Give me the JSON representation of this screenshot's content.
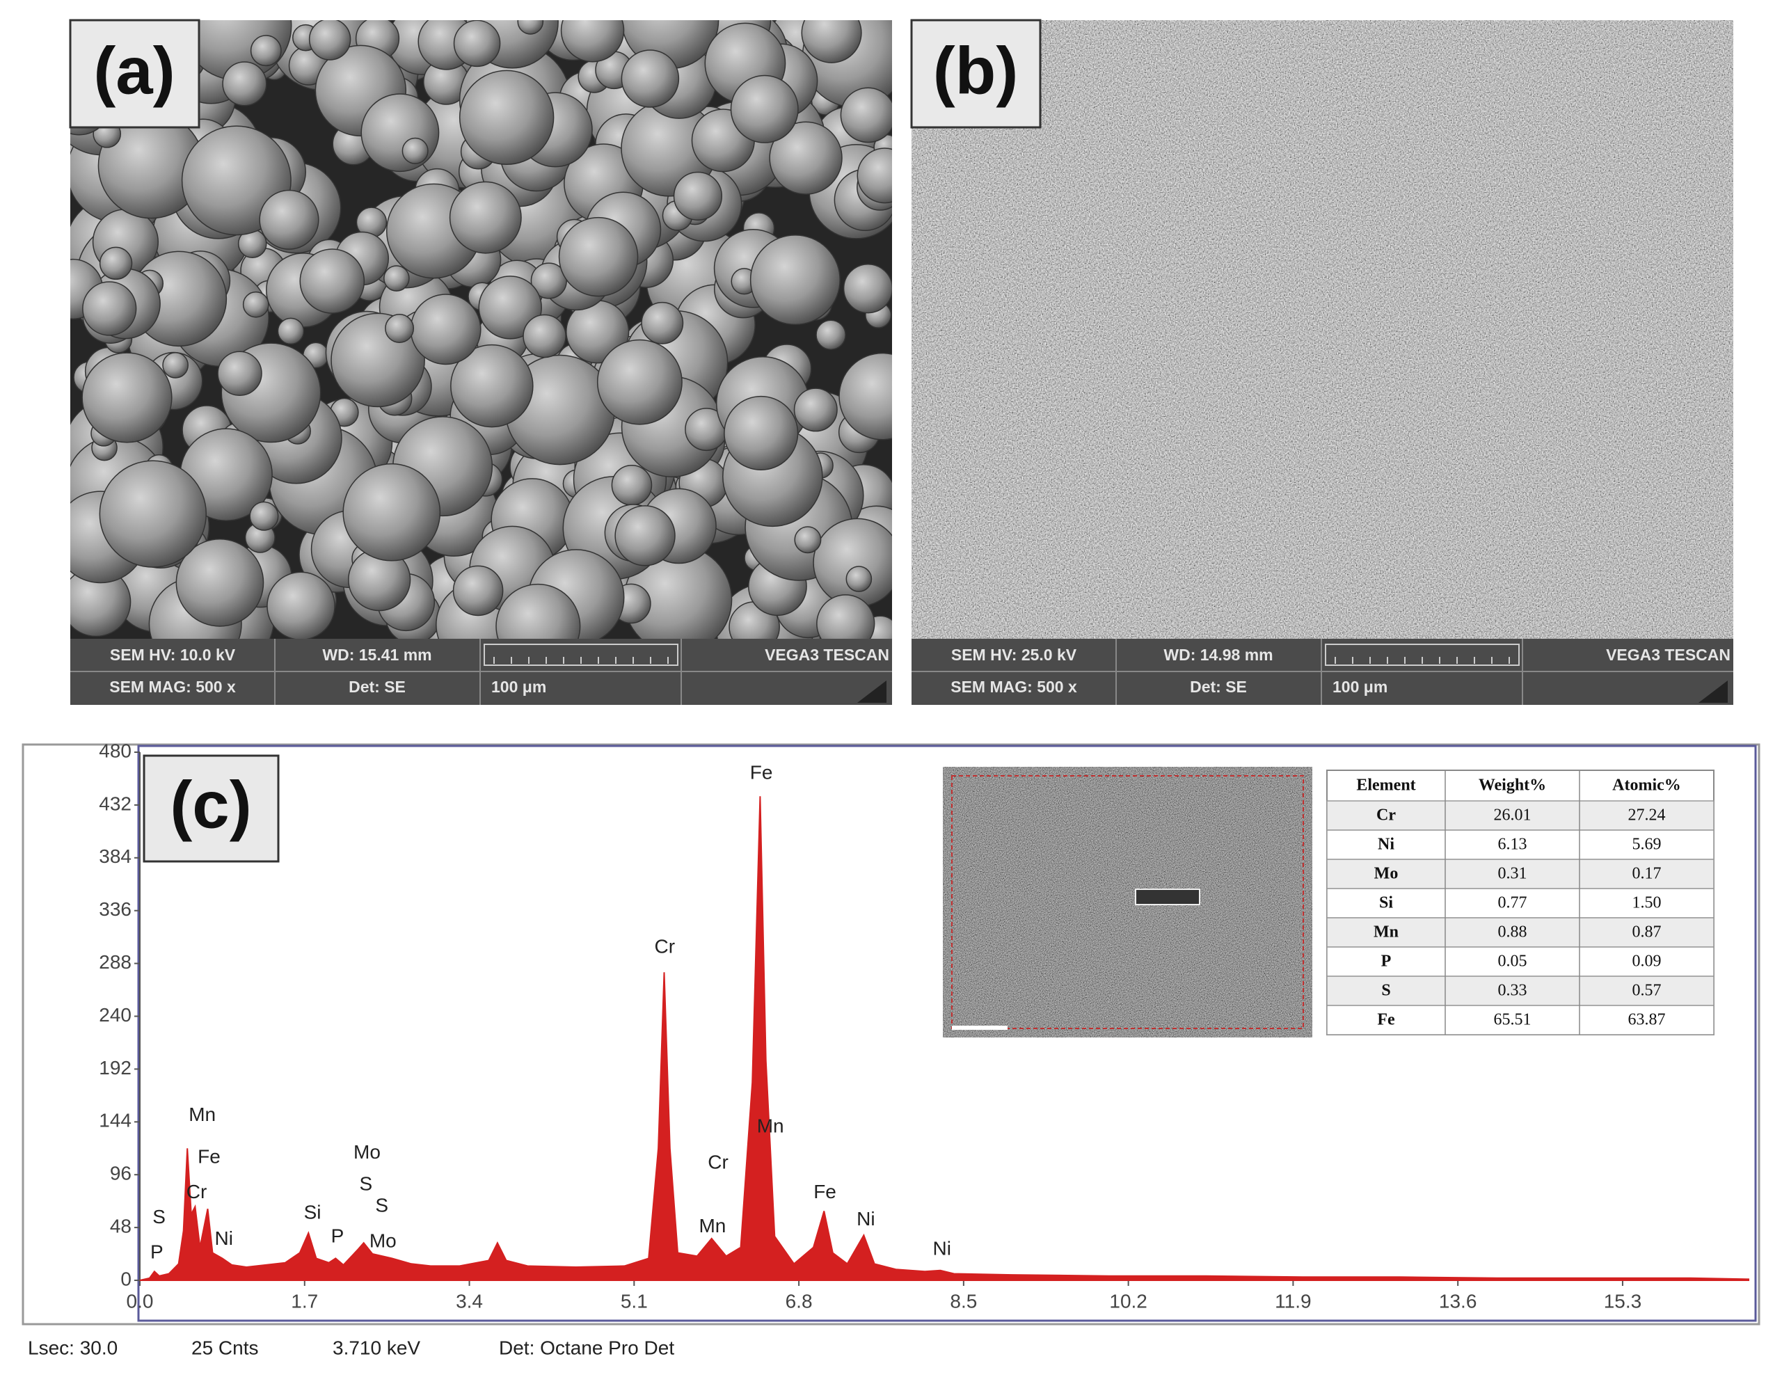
{
  "panels": {
    "a": {
      "label": "(a)",
      "info": [
        "SEM HV: 10.0 kV",
        "WD: 15.41 mm",
        "VEGA3 TESCAN",
        "SEM MAG: 500 x",
        "Det: SE",
        "100 μm"
      ]
    },
    "b": {
      "label": "(b)",
      "info": [
        "SEM HV: 25.0 kV",
        "WD: 14.98 mm",
        "VEGA3 TESCAN",
        "SEM MAG: 500 x",
        "Det: SE",
        "100 μm"
      ]
    }
  },
  "chart_data": {
    "type": "area",
    "label": "(c)",
    "color": "#d42020",
    "x": [
      0.0,
      0.1,
      0.15,
      0.2,
      0.3,
      0.4,
      0.45,
      0.49,
      0.53,
      0.57,
      0.62,
      0.7,
      0.75,
      0.85,
      0.95,
      1.1,
      1.3,
      1.5,
      1.65,
      1.74,
      1.82,
      1.95,
      2.02,
      2.1,
      2.25,
      2.31,
      2.4,
      2.6,
      2.8,
      3.0,
      3.3,
      3.6,
      3.69,
      3.78,
      4.0,
      4.5,
      5.0,
      5.25,
      5.35,
      5.41,
      5.47,
      5.55,
      5.75,
      5.9,
      6.05,
      6.2,
      6.32,
      6.4,
      6.46,
      6.55,
      6.75,
      6.95,
      7.06,
      7.15,
      7.3,
      7.47,
      7.58,
      7.8,
      8.1,
      8.26,
      8.4,
      9.0,
      10.0,
      11.0,
      12.0,
      13.0,
      14.0,
      15.0,
      16.0,
      16.6
    ],
    "values": [
      0,
      2,
      8,
      4,
      6,
      15,
      45,
      120,
      60,
      67,
      30,
      65,
      25,
      20,
      14,
      12,
      14,
      16,
      25,
      43,
      20,
      16,
      20,
      14,
      28,
      34,
      24,
      20,
      15,
      13,
      13,
      18,
      34,
      18,
      13,
      12,
      13,
      20,
      120,
      280,
      120,
      25,
      22,
      38,
      22,
      30,
      180,
      440,
      200,
      40,
      15,
      30,
      63,
      25,
      15,
      41,
      15,
      10,
      8,
      9,
      6,
      5,
      4,
      4,
      3,
      3,
      2,
      2,
      2,
      1
    ],
    "xlim": [
      0,
      16.6
    ],
    "ylim": [
      0,
      480
    ],
    "xticks": [
      {
        "value": 0,
        "label": "0.0"
      },
      1.7,
      3.4,
      5.1,
      6.8,
      8.5,
      10.2,
      11.9,
      13.6,
      15.3
    ],
    "yticks": [
      0,
      48,
      96,
      144,
      192,
      240,
      288,
      336,
      384,
      432,
      480
    ],
    "peak_labels": [
      "S",
      "P",
      "Mn",
      "Fe",
      "Cr",
      "Ni",
      "Si",
      "P",
      "Mo",
      "S",
      "S",
      "Mo",
      "Cr",
      "Fe",
      "Mn",
      "Cr",
      "Mn",
      "Fe",
      "Ni",
      "Ni"
    ],
    "footer": [
      "Lsec: 30.0",
      "25 Cnts",
      "3.710 keV",
      "Det: Octane Pro Det"
    ]
  },
  "inset_table": {
    "header": [
      "Element",
      "Weight%",
      "Atomic%"
    ],
    "rows": [
      [
        "Cr",
        "26.01",
        "27.24"
      ],
      [
        "Ni",
        "6.13",
        "5.69"
      ],
      [
        "Mo",
        "0.31",
        "0.17"
      ],
      [
        "Si",
        "0.77",
        "1.50"
      ],
      [
        "Mn",
        "0.88",
        "0.87"
      ],
      [
        "P",
        "0.05",
        "0.09"
      ],
      [
        "S",
        "0.33",
        "0.57"
      ],
      [
        "Fe",
        "65.51",
        "63.87"
      ]
    ]
  }
}
